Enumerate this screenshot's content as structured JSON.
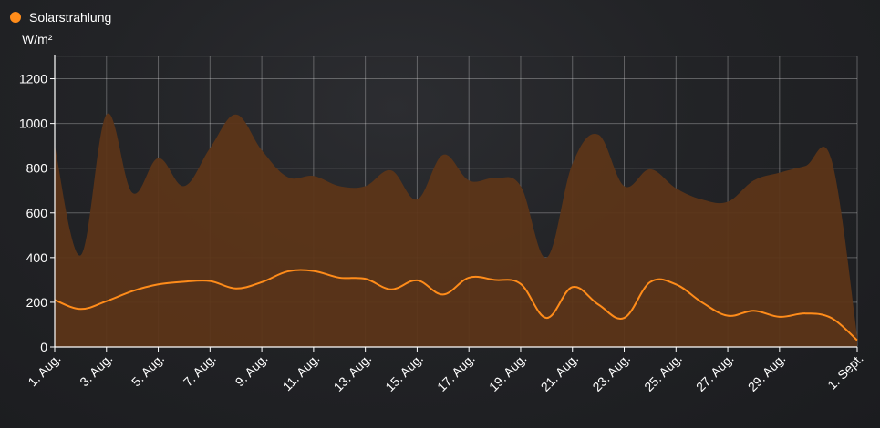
{
  "chart_data": {
    "type": "area",
    "unit_label": "W/m²",
    "legend": {
      "position": "top-left"
    },
    "grid": true,
    "x_tick_labels": [
      "1. Aug.",
      "3. Aug.",
      "5. Aug.",
      "7. Aug.",
      "9. Aug.",
      "11. Aug.",
      "13. Aug.",
      "15. Aug.",
      "17. Aug.",
      "19. Aug.",
      "21. Aug.",
      "23. Aug.",
      "25. Aug.",
      "27. Aug.",
      "29. Aug.",
      "1. Sept."
    ],
    "x_tick_days": [
      1,
      3,
      5,
      7,
      9,
      11,
      13,
      15,
      17,
      19,
      21,
      23,
      25,
      27,
      29,
      32
    ],
    "xlim_days": [
      1,
      32
    ],
    "ylim": [
      0,
      1300
    ],
    "y_ticks": [
      0,
      200,
      400,
      600,
      800,
      1000,
      1200
    ],
    "series": [
      {
        "name": "Solarstrahlung",
        "color": "#ff8c1a",
        "fill_color": "#5c3518",
        "max_values": [
          [
            1,
            900
          ],
          [
            2,
            410
          ],
          [
            3,
            1040
          ],
          [
            4,
            690
          ],
          [
            5,
            845
          ],
          [
            6,
            720
          ],
          [
            7,
            890
          ],
          [
            8,
            1040
          ],
          [
            9,
            880
          ],
          [
            10,
            760
          ],
          [
            11,
            765
          ],
          [
            12,
            720
          ],
          [
            13,
            720
          ],
          [
            14,
            790
          ],
          [
            15,
            660
          ],
          [
            16,
            860
          ],
          [
            17,
            745
          ],
          [
            18,
            755
          ],
          [
            19,
            720
          ],
          [
            20,
            400
          ],
          [
            21,
            820
          ],
          [
            22,
            950
          ],
          [
            23,
            720
          ],
          [
            24,
            795
          ],
          [
            25,
            710
          ],
          [
            26,
            660
          ],
          [
            27,
            650
          ],
          [
            28,
            745
          ],
          [
            29,
            780
          ],
          [
            30,
            810
          ],
          [
            31,
            840
          ],
          [
            32,
            50
          ]
        ],
        "values": [
          [
            1,
            210
          ],
          [
            2,
            170
          ],
          [
            3,
            205
          ],
          [
            4,
            250
          ],
          [
            5,
            280
          ],
          [
            6,
            292
          ],
          [
            7,
            295
          ],
          [
            8,
            262
          ],
          [
            9,
            290
          ],
          [
            10,
            338
          ],
          [
            11,
            340
          ],
          [
            12,
            310
          ],
          [
            13,
            305
          ],
          [
            14,
            258
          ],
          [
            15,
            298
          ],
          [
            16,
            235
          ],
          [
            17,
            310
          ],
          [
            18,
            300
          ],
          [
            19,
            282
          ],
          [
            20,
            130
          ],
          [
            21,
            268
          ],
          [
            22,
            190
          ],
          [
            23,
            130
          ],
          [
            24,
            290
          ],
          [
            25,
            280
          ],
          [
            26,
            200
          ],
          [
            27,
            140
          ],
          [
            28,
            162
          ],
          [
            29,
            135
          ],
          [
            30,
            150
          ],
          [
            31,
            130
          ],
          [
            32,
            30
          ]
        ]
      }
    ]
  }
}
